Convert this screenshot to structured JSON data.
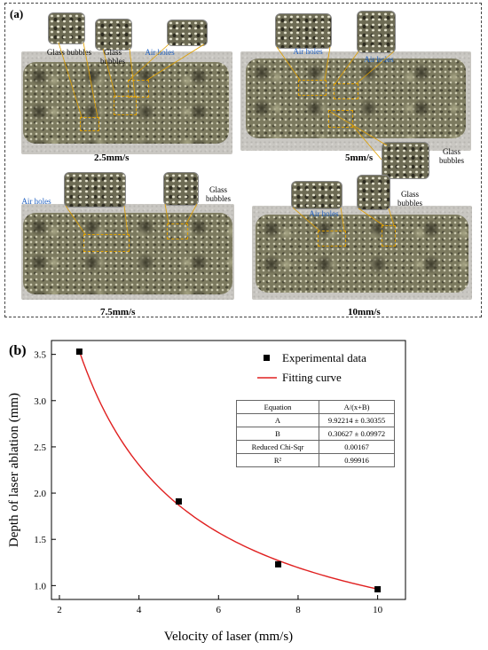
{
  "panel_a": {
    "label": "(a)",
    "specimens": [
      {
        "speed": "2.5mm/s",
        "labels": [
          "Glass bubbles",
          "Glass bubbles",
          "Air holes"
        ]
      },
      {
        "speed": "5mm/s",
        "labels": [
          "Air holes",
          "Air holes",
          "Glass bubbles"
        ]
      },
      {
        "speed": "7.5mm/s",
        "labels": [
          "Air holes",
          "Glass bubbles"
        ]
      },
      {
        "speed": "10mm/s",
        "labels": [
          "Air holes",
          "Glass bubbles"
        ]
      }
    ]
  },
  "panel_b": {
    "label": "(b)",
    "legend": {
      "data": "Experimental data",
      "fit": "Fitting curve"
    },
    "fit_table": {
      "header": [
        "Equation",
        "A/(x+B)"
      ],
      "rows": [
        [
          "A",
          "9.92214 ± 0.30355"
        ],
        [
          "B",
          "0.30627 ± 0.09972"
        ],
        [
          "Reduced Chi-Sqr",
          "0.00167"
        ],
        [
          "R²",
          "0.99916"
        ]
      ]
    }
  },
  "chart_data": {
    "type": "scatter",
    "title": "",
    "xlabel": "Velocity of laser (mm/s)",
    "ylabel": "Depth of laser ablation (mm)",
    "xlim": [
      1.8,
      10.7
    ],
    "ylim": [
      0.85,
      3.65
    ],
    "xticks": [
      2,
      4,
      6,
      8,
      10
    ],
    "yticks": [
      1.0,
      1.5,
      2.0,
      2.5,
      3.0,
      3.5
    ],
    "grid": false,
    "legend_position": "top-right",
    "series": [
      {
        "name": "Experimental data",
        "kind": "points",
        "color": "#000000",
        "x": [
          2.5,
          5,
          7.5,
          10
        ],
        "y": [
          3.53,
          1.91,
          1.23,
          0.96
        ]
      },
      {
        "name": "Fitting curve",
        "kind": "line",
        "color": "#e02020",
        "model": "A/(x+B)",
        "A": 9.92214,
        "B": 0.30627,
        "x_range": [
          2.5,
          10
        ]
      }
    ]
  }
}
